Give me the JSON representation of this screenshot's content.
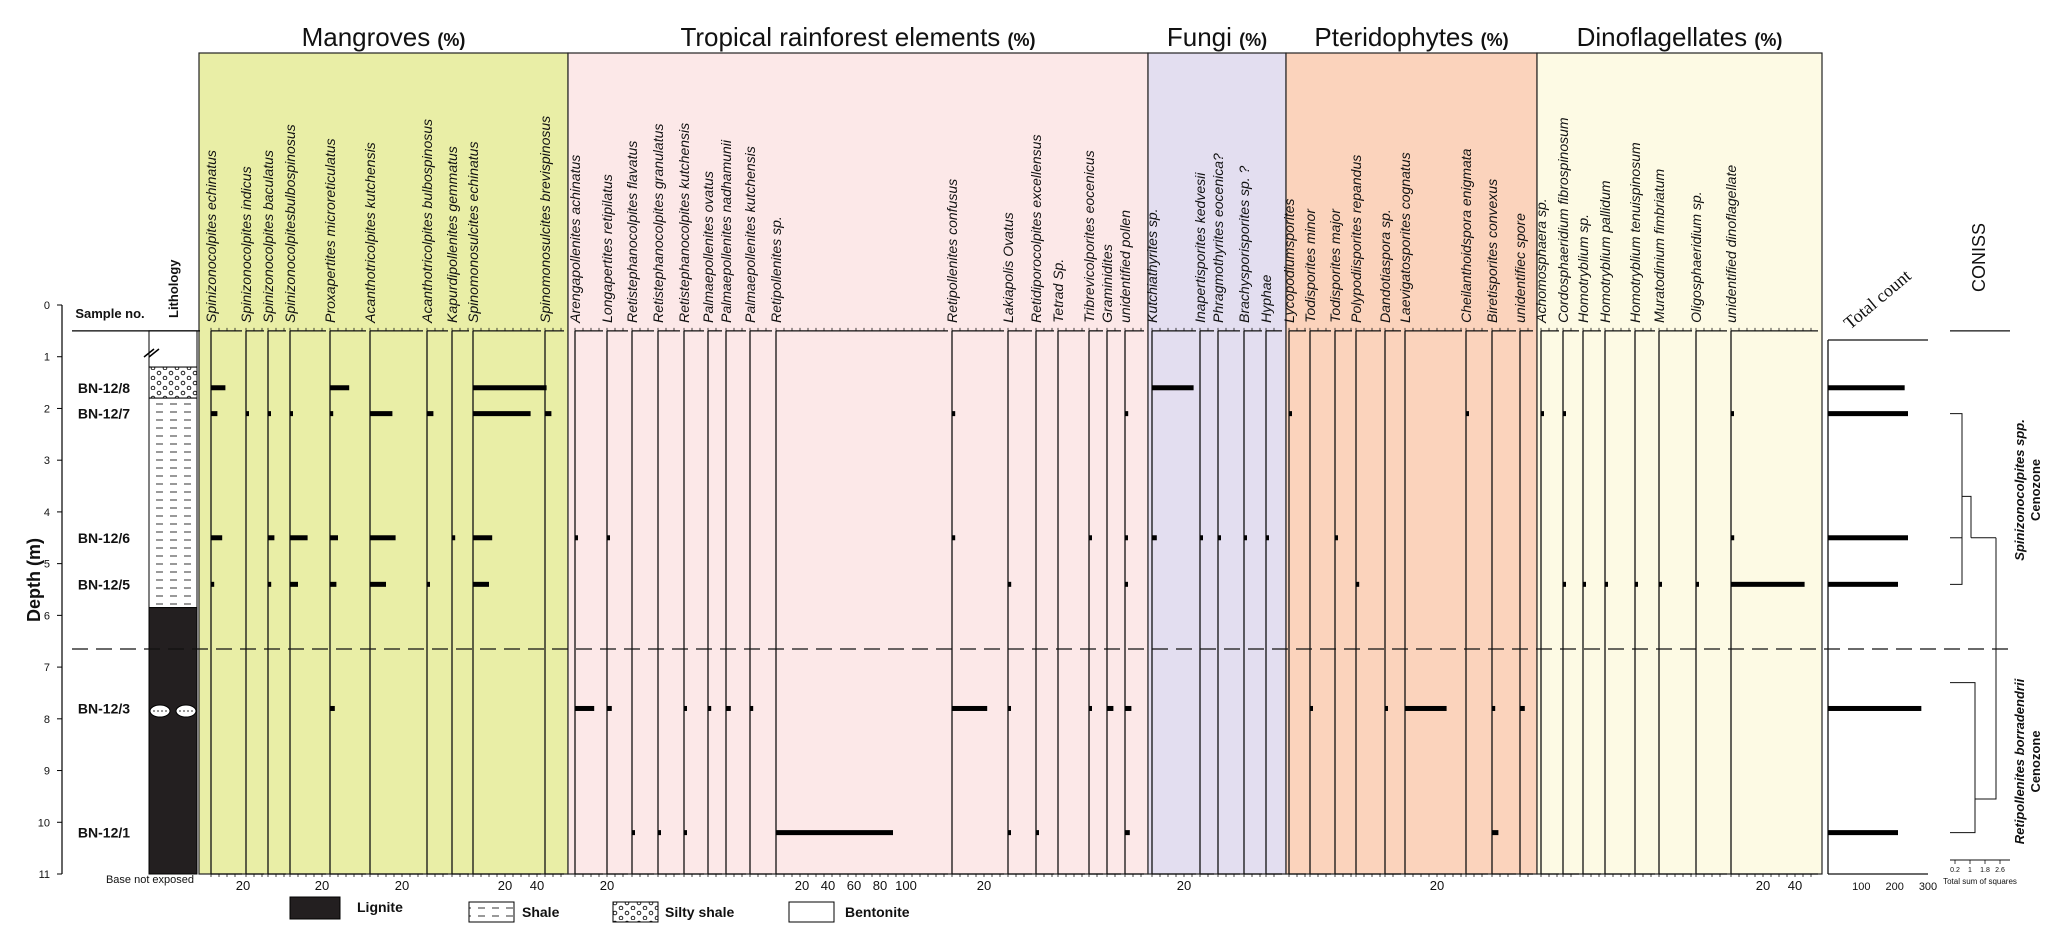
{
  "chart_data": {
    "type": "pollen-diagram",
    "y_axis": {
      "label": "Depth (m)",
      "ticks": [
        0,
        1,
        2,
        3,
        4,
        5,
        6,
        7,
        8,
        9,
        10,
        11
      ],
      "range": [
        0,
        11
      ]
    },
    "sample_header": "Sample no.",
    "lithology_header": "Lithology",
    "base_note": "Base not exposed",
    "samples": [
      {
        "name": "BN-12/8",
        "depth": 1.6
      },
      {
        "name": "BN-12/7",
        "depth": 2.1
      },
      {
        "name": "BN-12/6",
        "depth": 4.5
      },
      {
        "name": "BN-12/5",
        "depth": 5.4
      },
      {
        "name": "BN-12/3",
        "depth": 7.8
      },
      {
        "name": "BN-12/1",
        "depth": 10.2
      }
    ],
    "lithology": [
      {
        "type": "Bentonite",
        "top": 0.5,
        "bottom": 1.2
      },
      {
        "type": "Silty shale",
        "top": 1.2,
        "bottom": 1.8
      },
      {
        "type": "Shale",
        "top": 1.8,
        "bottom": 5.85
      },
      {
        "type": "Lignite",
        "top": 5.85,
        "bottom": 11
      }
    ],
    "zone_boundary_depth": 6.65,
    "zones": [
      {
        "label1": "Spinizonocolpites spp.",
        "label2": "Cenozone",
        "top": 0.5,
        "bottom": 6.65
      },
      {
        "label1": "Retipollenites borradendrii",
        "label2": "Cenozone",
        "top": 6.65,
        "bottom": 11
      }
    ],
    "groups": [
      {
        "name": "Mangroves",
        "unit": "(%)",
        "color": "#e9eea6",
        "taxa": [
          {
            "name": "Spinizonocolpites echinatus",
            "ticks": [
              "20"
            ],
            "values": {
              "1.6": 9,
              "2.1": 4,
              "4.5": 7,
              "5.4": 2
            }
          },
          {
            "name": "Spinizonocolpites indicus",
            "ticks": [],
            "values": {
              "2.1": 1
            }
          },
          {
            "name": "Spinizonocolpites baculatus",
            "ticks": [],
            "values": {
              "2.1": 1,
              "4.5": 4,
              "5.4": 2
            }
          },
          {
            "name": "Spinizonocolpitesbulbospinosus",
            "ticks": [
              "20"
            ],
            "values": {
              "2.1": 1,
              "4.5": 11,
              "5.4": 5
            }
          },
          {
            "name": "Proxapertites microreticulatus",
            "ticks": [],
            "values": {
              "1.6": 12,
              "2.1": 2,
              "4.5": 5,
              "5.4": 4,
              "7.8": 3
            }
          },
          {
            "name": "Acanthotricolpites kutchensis",
            "ticks": [
              "20"
            ],
            "values": {
              "2.1": 14,
              "4.5": 16,
              "5.4": 10
            }
          },
          {
            "name": "Acanthotricolpites bulbospinosus",
            "ticks": [],
            "values": {
              "2.1": 4,
              "5.4": 1
            }
          },
          {
            "name": "Kapurdipollenites gemmatus",
            "ticks": [],
            "values": {
              "4.5": 2
            }
          },
          {
            "name": "Spinomonosulcites echinatus",
            "ticks": [
              "20",
              "40"
            ],
            "values": {
              "1.6": 46,
              "2.1": 36,
              "4.5": 12,
              "5.4": 10
            }
          },
          {
            "name": "Spinomonosulcites brevispinosus",
            "ticks": [],
            "values": {
              "2.1": 4
            }
          }
        ]
      },
      {
        "name": "Tropical rainforest elements",
        "unit": "(%)",
        "color": "#fce8e8",
        "taxa": [
          {
            "name": "Arengapollenites achinatus",
            "ticks": [
              "20"
            ],
            "values": {
              "4.5": 1,
              "7.8": 12
            }
          },
          {
            "name": "Longapertites retipilatus",
            "ticks": [],
            "values": {
              "4.5": 1,
              "7.8": 3
            }
          },
          {
            "name": "Retistephanocolpites flavatus",
            "ticks": [],
            "values": {
              "10.2": 1
            }
          },
          {
            "name": "Retistephanocolpites granulatus",
            "ticks": [],
            "values": {
              "10.2": 1
            }
          },
          {
            "name": "Retistephanocolpites kutchensis",
            "ticks": [],
            "values": {
              "7.8": 1,
              "10.2": 1
            }
          },
          {
            "name": "Palmaepollenites ovatus",
            "ticks": [],
            "values": {
              "7.8": 2
            }
          },
          {
            "name": "Palmaepollenites nadhamunii",
            "ticks": [],
            "values": {
              "7.8": 3
            }
          },
          {
            "name": "Palmaepollenites kutchensis",
            "ticks": [],
            "values": {
              "7.8": 2
            }
          },
          {
            "name": "Retipollenites sp.",
            "ticks": [
              "20",
              "40",
              "60",
              "80",
              "100"
            ],
            "values": {
              "10.2": 90
            }
          },
          {
            "name": "Retipollenites confusus",
            "ticks": [
              "20"
            ],
            "values": {
              "2.1": 2,
              "4.5": 2,
              "7.8": 22
            }
          },
          {
            "name": "Lakiapolis Ovatus",
            "ticks": [],
            "values": {
              "5.4": 2,
              "7.8": 1,
              "10.2": 1
            }
          },
          {
            "name": "Retidiporocolpites excellensus",
            "ticks": [],
            "values": {
              "10.2": 1
            }
          },
          {
            "name": "Tetrad Sp.",
            "ticks": [],
            "values": {}
          },
          {
            "name": "Tribrevicolporites eocenicus",
            "ticks": [],
            "values": {
              "4.5": 1,
              "7.8": 1
            }
          },
          {
            "name": "Graminidites",
            "ticks": [],
            "values": {
              "7.8": 4
            }
          },
          {
            "name": "unidentified pollen",
            "ticks": [],
            "values": {
              "2.1": 2,
              "4.5": 1,
              "5.4": 1,
              "7.8": 4,
              "10.2": 3
            }
          }
        ]
      },
      {
        "name": "Fungi",
        "unit": "(%)",
        "color": "#e3def0",
        "taxa": [
          {
            "name": "Kutchiathyrites sp.",
            "ticks": [
              "20"
            ],
            "values": {
              "1.6": 26,
              "4.5": 3
            }
          },
          {
            "name": "Inapertisporites kedvesii",
            "ticks": [],
            "values": {
              "4.5": 1
            }
          },
          {
            "name": "Phragmothyrites eocenica?",
            "ticks": [],
            "values": {
              "4.5": 1
            }
          },
          {
            "name": "Brachysporisporites sp. ?",
            "ticks": [],
            "values": {
              "4.5": 1
            }
          },
          {
            "name": "Hyphae",
            "ticks": [],
            "values": {
              "4.5": 1
            }
          }
        ]
      },
      {
        "name": "Pteridophytes",
        "unit": "(%)",
        "color": "#fbd3bc",
        "taxa": [
          {
            "name": "Lycopodiumsporites",
            "ticks": [],
            "values": {
              "2.1": 1
            }
          },
          {
            "name": "Todisporites minor",
            "ticks": [],
            "values": {
              "7.8": 1
            }
          },
          {
            "name": "Todisporites major",
            "ticks": [],
            "values": {
              "4.5": 1
            }
          },
          {
            "name": "Polypodiisporites repandus",
            "ticks": [],
            "values": {
              "5.4": 2
            }
          },
          {
            "name": "Dandotiaspora sp.",
            "ticks": [],
            "values": {
              "7.8": 1
            }
          },
          {
            "name": "Laevigatosporites cognatus",
            "ticks": [
              "20"
            ],
            "values": {
              "7.8": 26
            }
          },
          {
            "name": "Cheilanthoidspora enigmata",
            "ticks": [],
            "values": {
              "2.1": 1
            }
          },
          {
            "name": "Biretisporites convexus",
            "ticks": [],
            "values": {
              "7.8": 2,
              "10.2": 4
            }
          },
          {
            "name": "unidentifiec spore",
            "ticks": [],
            "values": {
              "7.8": 3
            }
          }
        ]
      },
      {
        "name": "Dinoflagellates",
        "unit": "(%)",
        "color": "#fdfae4",
        "taxa": [
          {
            "name": "Achomosphaera sp.",
            "ticks": [],
            "values": {
              "2.1": 1
            }
          },
          {
            "name": "Cordosphaeridium fibrospinosum",
            "ticks": [],
            "values": {
              "2.1": 1,
              "5.4": 1
            }
          },
          {
            "name": "Homotryblium sp.",
            "ticks": [],
            "values": {
              "5.4": 1
            }
          },
          {
            "name": "Homotryblium pallidum",
            "ticks": [],
            "values": {
              "5.4": 1
            }
          },
          {
            "name": "Homotryblium tenuispinosum",
            "ticks": [],
            "values": {
              "5.4": 1
            }
          },
          {
            "name": "Muratodinium fimbriatum",
            "ticks": [],
            "values": {
              "5.4": 1
            }
          },
          {
            "name": "Oligosphaeridium sp.",
            "ticks": [],
            "values": {
              "5.4": 1
            }
          },
          {
            "name": "unidentified dinoflagellate",
            "ticks": [
              "20",
              "40"
            ],
            "values": {
              "2.1": 1,
              "4.5": 2,
              "5.4": 46
            }
          }
        ]
      }
    ],
    "total_count": {
      "label": "Total count",
      "ticks": [
        "100",
        "200",
        "300"
      ],
      "max": 300,
      "values": {
        "1.6": 230,
        "2.1": 240,
        "4.5": 240,
        "5.4": 210,
        "7.8": 280,
        "10.2": 210
      }
    },
    "coniss": {
      "label": "CONISS",
      "ticks": [
        "0.2",
        "1",
        "1.8",
        "2.6"
      ],
      "xlabel": "Total sum of squares"
    },
    "legend": [
      {
        "type": "Lignite",
        "label": "Lignite"
      },
      {
        "type": "Shale",
        "label": "Shale"
      },
      {
        "type": "Silty shale",
        "label": "Silty shale"
      },
      {
        "type": "Bentonite",
        "label": "Bentonite"
      }
    ]
  }
}
